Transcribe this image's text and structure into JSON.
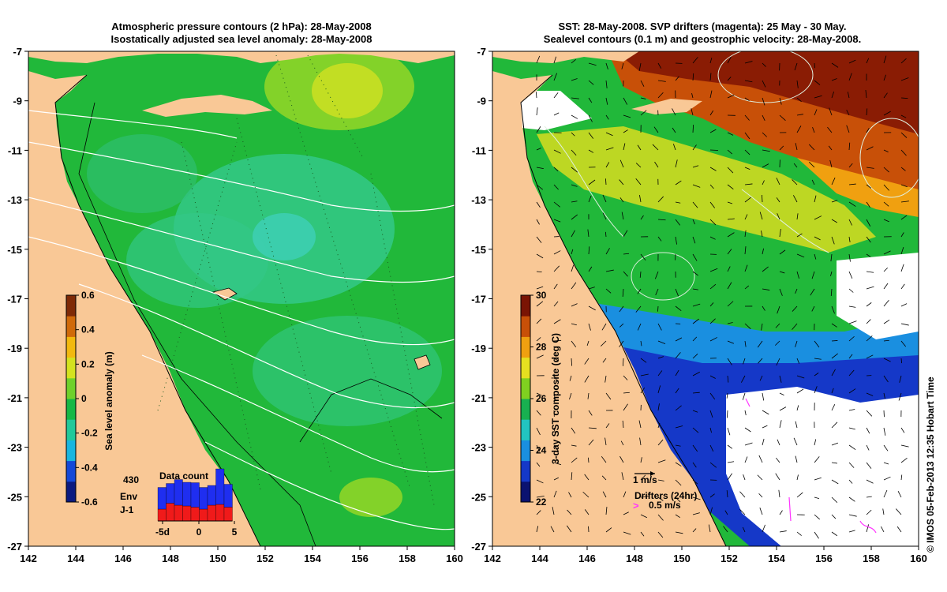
{
  "left": {
    "title_line1": "Atmospheric pressure contours (2 hPa): 28-May-2008",
    "title_line2": "Isostatically adjusted sea level anomaly: 28-May-2008",
    "colorbar": {
      "label": "Sea level anomaly (m)",
      "ticks": [
        "0.6",
        "0.4",
        "0.2",
        "0",
        "-0.2",
        "-0.4",
        "-0.6"
      ],
      "colors": [
        "#0b1a80",
        "#1448d8",
        "#19b6e0",
        "#21c99a",
        "#17b845",
        "#6fd12b",
        "#d4e21f",
        "#f2b90f",
        "#d06a0a",
        "#7f2a06"
      ]
    },
    "datacount": {
      "title": "Data count",
      "total": "430",
      "env_label": "Env",
      "j1_label": "J-1",
      "env_color": "#1f2ef0",
      "j1_color": "#f01a1a",
      "xticks": [
        "-5d",
        "0",
        "5"
      ],
      "env_values": [
        0.55,
        0.5,
        0.65,
        0.6,
        0.62,
        0.55,
        0.5,
        0.9,
        0.58
      ],
      "j1_values": [
        0.3,
        0.45,
        0.4,
        0.38,
        0.35,
        0.3,
        0.4,
        0.42,
        0.35
      ]
    }
  },
  "right": {
    "title_line1": "SST: 28-May-2008. SVP drifters (magenta): 25 May - 30 May.",
    "title_line2": "Sealevel contours (0.1 m) and geostrophic velocity: 28-May-2008.",
    "colorbar": {
      "label": "3-day SST composite (deg C)",
      "ticks": [
        "30",
        "28",
        "26",
        "24",
        "22"
      ],
      "colors": [
        "#0b1270",
        "#1538c8",
        "#1a8fe0",
        "#22c4c0",
        "#18b050",
        "#80d020",
        "#e6e020",
        "#f0a010",
        "#c85008",
        "#7a1404"
      ]
    },
    "velocity_scale": "1 m/s",
    "drifters_label": "Drifters (24hr)",
    "drifters_speed": "0.5 m/s"
  },
  "axes": {
    "x_ticks": [
      "142",
      "144",
      "146",
      "148",
      "150",
      "152",
      "154",
      "156",
      "158",
      "160"
    ],
    "y_ticks": [
      "-7",
      "-9",
      "-11",
      "-13",
      "-15",
      "-17",
      "-19",
      "-21",
      "-23",
      "-25",
      "-27"
    ]
  },
  "credit": "© IMOS 05-Feb-2013 12:35 Hobart Time",
  "colors": {
    "land": "#f9c896",
    "ocean_green": "#21b83a",
    "ocean_teal": "#31c78d",
    "no_data": "#ffffff"
  }
}
